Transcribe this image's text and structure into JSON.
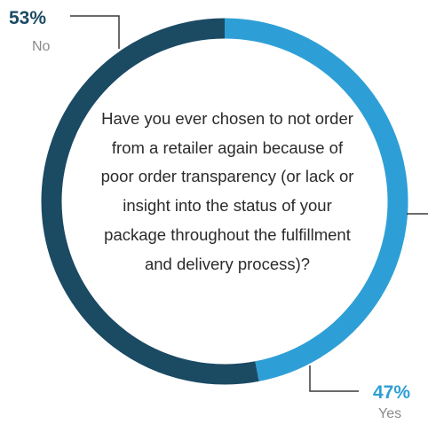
{
  "question": "Have you ever chosen to not order from a retailer again because of poor order transparency (or lack or insight into the status of your package throughout the fulfillment and delivery process)?",
  "colors": {
    "no": "#1b4a63",
    "yes": "#2e9fd6",
    "no_text": "#1b4a63",
    "yes_text": "#2e9fd6",
    "leader": "#3a3a3a"
  },
  "chart_data": {
    "type": "pie",
    "style": "donut",
    "slices": [
      {
        "label": "No",
        "value": 53,
        "value_text": "53%"
      },
      {
        "label": "Yes",
        "value": 47,
        "value_text": "47%"
      }
    ]
  }
}
